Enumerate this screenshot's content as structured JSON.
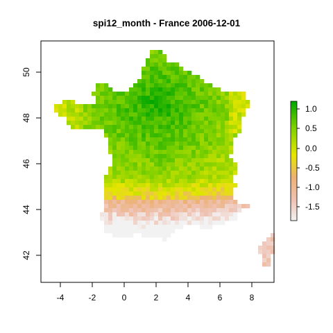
{
  "title": "spi12_month - France 2006-12-01",
  "x_ticks": [
    "-4",
    "-2",
    "0",
    "2",
    "4",
    "6",
    "8"
  ],
  "y_ticks": [
    "42",
    "44",
    "46",
    "48",
    "50"
  ],
  "legend_ticks": [
    "1.0",
    "0.5",
    "0.0",
    "-0.5",
    "-1.0",
    "-1.5"
  ],
  "map_data": {
    "type": "raster",
    "variable": "spi12_month",
    "region": "France",
    "date": "2006-12-01",
    "xlim": [
      -5.1,
      9.6
    ],
    "ylim": [
      40.9,
      51.4
    ],
    "value_range": [
      -1.85,
      1.2
    ],
    "palette": [
      "#F2F2F2",
      "#EFC2B3",
      "#ECB176",
      "#E6E600",
      "#00A600"
    ],
    "pattern": "wet (green) center-north, dry (pink) southern band and Corsica"
  },
  "colors": {
    "frame": "#000000",
    "background": "#ffffff"
  }
}
